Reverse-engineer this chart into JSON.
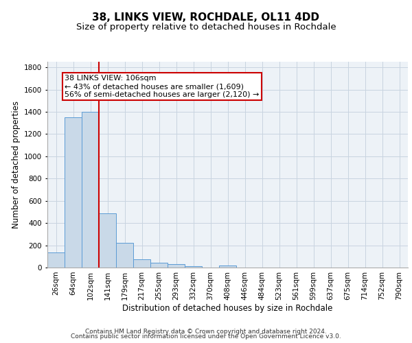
{
  "title": "38, LINKS VIEW, ROCHDALE, OL11 4DD",
  "subtitle": "Size of property relative to detached houses in Rochdale",
  "xlabel": "Distribution of detached houses by size in Rochdale",
  "ylabel": "Number of detached properties",
  "bar_color": "#c9d9e8",
  "bar_edge_color": "#5b9bd5",
  "categories": [
    "26sqm",
    "64sqm",
    "102sqm",
    "141sqm",
    "179sqm",
    "217sqm",
    "255sqm",
    "293sqm",
    "332sqm",
    "370sqm",
    "408sqm",
    "446sqm",
    "484sqm",
    "523sqm",
    "561sqm",
    "599sqm",
    "637sqm",
    "675sqm",
    "714sqm",
    "752sqm",
    "790sqm"
  ],
  "values": [
    135,
    1350,
    1400,
    490,
    225,
    75,
    43,
    28,
    15,
    0,
    20,
    0,
    0,
    0,
    0,
    0,
    0,
    0,
    0,
    0,
    0
  ],
  "vline_x_idx": 2,
  "vline_color": "#cc0000",
  "annotation_line1": "38 LINKS VIEW: 106sqm",
  "annotation_line2": "← 43% of detached houses are smaller (1,609)",
  "annotation_line3": "56% of semi-detached houses are larger (2,120) →",
  "annotation_box_color": "#ffffff",
  "annotation_box_edge_color": "#cc0000",
  "ylim": [
    0,
    1850
  ],
  "yticks": [
    0,
    200,
    400,
    600,
    800,
    1000,
    1200,
    1400,
    1600,
    1800
  ],
  "footer_line1": "Contains HM Land Registry data © Crown copyright and database right 2024.",
  "footer_line2": "Contains public sector information licensed under the Open Government Licence v3.0.",
  "background_color": "#edf2f7",
  "grid_color": "#c8d4e0",
  "title_fontsize": 11,
  "subtitle_fontsize": 9.5,
  "axis_label_fontsize": 8.5,
  "tick_fontsize": 7.5,
  "annotation_fontsize": 8,
  "footer_fontsize": 6.5
}
